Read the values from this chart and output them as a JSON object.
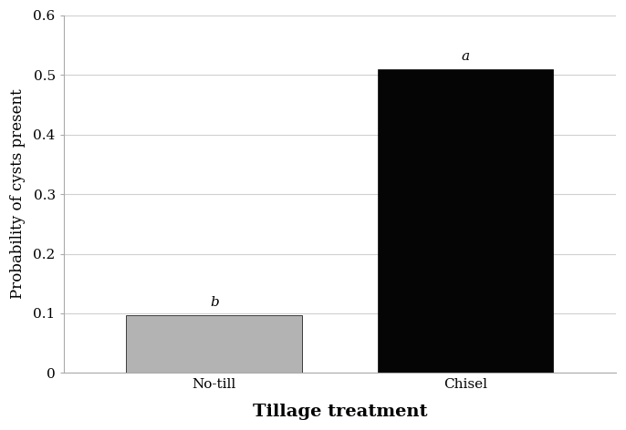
{
  "categories": [
    "No-till",
    "Chisel"
  ],
  "values": [
    0.097,
    0.51
  ],
  "bar_colors": [
    "#b3b3b3",
    "#050505"
  ],
  "bar_width": 0.35,
  "annotations": [
    "b",
    "a"
  ],
  "ylabel": "Probability of cysts present",
  "xlabel": "Tillage treatment",
  "ylim": [
    0,
    0.6
  ],
  "ytick_labels": [
    "0",
    "0.1",
    "0.2",
    "0.3",
    "0.4",
    "0.5",
    "0.6"
  ],
  "ytick_values": [
    0.0,
    0.1,
    0.2,
    0.3,
    0.4,
    0.5,
    0.6
  ],
  "background_color": "#ffffff",
  "ylabel_fontsize": 12,
  "xlabel_fontsize": 14,
  "tick_fontsize": 11,
  "annotation_fontsize": 11,
  "grid_color": "#d0d0d0",
  "bar_edge_color": "#000000",
  "spine_color": "#aaaaaa"
}
